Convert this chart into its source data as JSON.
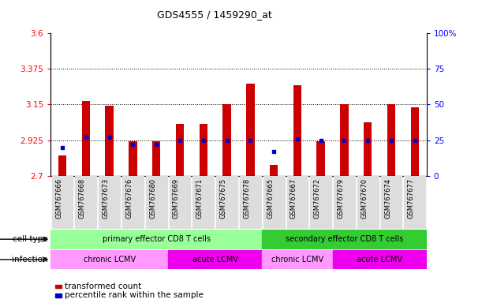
{
  "title": "GDS4555 / 1459290_at",
  "samples": [
    "GSM767666",
    "GSM767668",
    "GSM767673",
    "GSM767676",
    "GSM767680",
    "GSM767669",
    "GSM767671",
    "GSM767675",
    "GSM767678",
    "GSM767665",
    "GSM767667",
    "GSM767672",
    "GSM767679",
    "GSM767670",
    "GSM767674",
    "GSM767677"
  ],
  "transformed_counts": [
    2.83,
    3.17,
    3.14,
    2.92,
    2.92,
    3.03,
    3.03,
    3.15,
    3.28,
    2.77,
    3.27,
    2.92,
    3.15,
    3.04,
    3.15,
    3.13
  ],
  "percentile_ranks": [
    20,
    27,
    27,
    22,
    22,
    25,
    25,
    25,
    25,
    17,
    26,
    25,
    25,
    25,
    25,
    25
  ],
  "ymin": 2.7,
  "ymax": 3.6,
  "yticks": [
    2.7,
    2.925,
    3.15,
    3.375,
    3.6
  ],
  "ytick_labels": [
    "2.7",
    "2.925",
    "3.15",
    "3.375",
    "3.6"
  ],
  "right_yticks": [
    0,
    25,
    50,
    75,
    100
  ],
  "right_ytick_labels": [
    "0",
    "25",
    "50",
    "75",
    "100%"
  ],
  "dotted_lines": [
    2.925,
    3.15,
    3.375
  ],
  "bar_color": "#CC0000",
  "percentile_color": "#0000CC",
  "cell_type_groups": [
    {
      "label": "primary effector CD8 T cells",
      "start": 0,
      "end": 9,
      "color": "#99FF99"
    },
    {
      "label": "secondary effector CD8 T cells",
      "start": 9,
      "end": 16,
      "color": "#33CC33"
    }
  ],
  "infection_groups": [
    {
      "label": "chronic LCMV",
      "start": 0,
      "end": 5,
      "color": "#FF99FF"
    },
    {
      "label": "acute LCMV",
      "start": 5,
      "end": 9,
      "color": "#EE00EE"
    },
    {
      "label": "chronic LCMV",
      "start": 9,
      "end": 12,
      "color": "#FF99FF"
    },
    {
      "label": "acute LCMV",
      "start": 12,
      "end": 16,
      "color": "#EE00EE"
    }
  ],
  "legend_items": [
    {
      "label": "transformed count",
      "color": "#CC0000"
    },
    {
      "label": "percentile rank within the sample",
      "color": "#0000CC"
    }
  ],
  "cell_type_label": "cell type",
  "infection_label": "infection",
  "bar_width": 0.35,
  "tick_label_bg": "#DDDDDD"
}
